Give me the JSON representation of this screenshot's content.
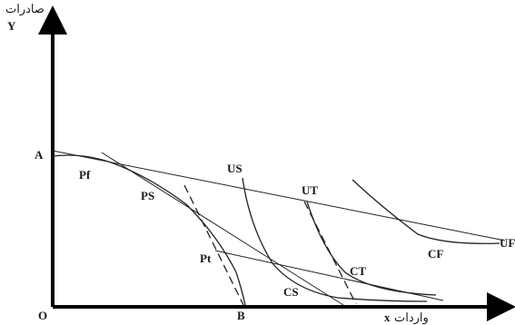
{
  "axis_labels": {
    "y_arabic": "صادرات",
    "y": "Y",
    "x_arabic": "واردات",
    "x": "x",
    "origin": "O"
  },
  "points": {
    "A": "A",
    "B": "B",
    "Pf": "Pf",
    "PS": "PS",
    "Pt": "Pt",
    "US": "US",
    "UT": "UT",
    "UF": "UF",
    "CS": "CS",
    "CT": "CT",
    "CF": "CF"
  }
}
